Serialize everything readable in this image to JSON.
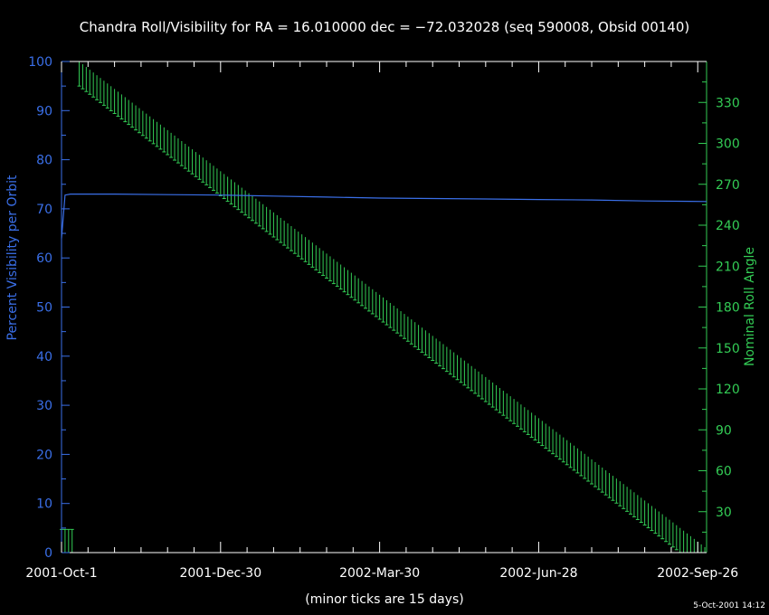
{
  "chart_data": {
    "type": "line",
    "title": "Chandra Roll/Visibility for RA = 16.010000 dec = −72.032028 (seq 590008, Obsid 00140)",
    "xlabel": "(minor ticks are 15 days)",
    "ylabel_left": "Percent Visibility per Orbit",
    "ylabel_right": "Nominal Roll Angle",
    "timestamp": "5-Oct-2001 14:12",
    "x_ticks": [
      "2001-Oct-1",
      "2001-Dec-30",
      "2002-Mar-30",
      "2002-Jun-28",
      "2002-Sep-26"
    ],
    "x_tick_days": [
      0,
      90,
      180,
      270,
      360
    ],
    "x_range_days": [
      0,
      365
    ],
    "minor_tick_days": 15,
    "ylim_left": [
      0,
      100
    ],
    "ylim_right": [
      0,
      360
    ],
    "y_ticks_left": [
      "0",
      "10",
      "20",
      "30",
      "40",
      "50",
      "60",
      "70",
      "80",
      "90",
      "100"
    ],
    "y_ticks_right": [
      "30",
      "60",
      "90",
      "120",
      "150",
      "180",
      "210",
      "240",
      "270",
      "300",
      "330"
    ],
    "series": [
      {
        "name": "Percent Visibility per Orbit",
        "axis": "left",
        "color": "#3a6fe8",
        "x_days": [
          0,
          2,
          5,
          30,
          60,
          90,
          120,
          150,
          180,
          210,
          240,
          270,
          300,
          330,
          365
        ],
        "values": [
          64,
          72.8,
          73.0,
          73.0,
          72.9,
          72.8,
          72.6,
          72.4,
          72.2,
          72.1,
          72.0,
          71.9,
          71.8,
          71.6,
          71.5
        ]
      },
      {
        "name": "Nominal Roll Angle",
        "axis": "right",
        "color": "#33cc55",
        "style": "range-bars",
        "x_start_day": 10,
        "x_end_day": 365,
        "roll_start": 360,
        "roll_end": 3,
        "range_width": 18,
        "early_bars_x_days": [
          0,
          2,
          4,
          6
        ],
        "early_bars_range": [
          0,
          17
        ]
      }
    ]
  }
}
